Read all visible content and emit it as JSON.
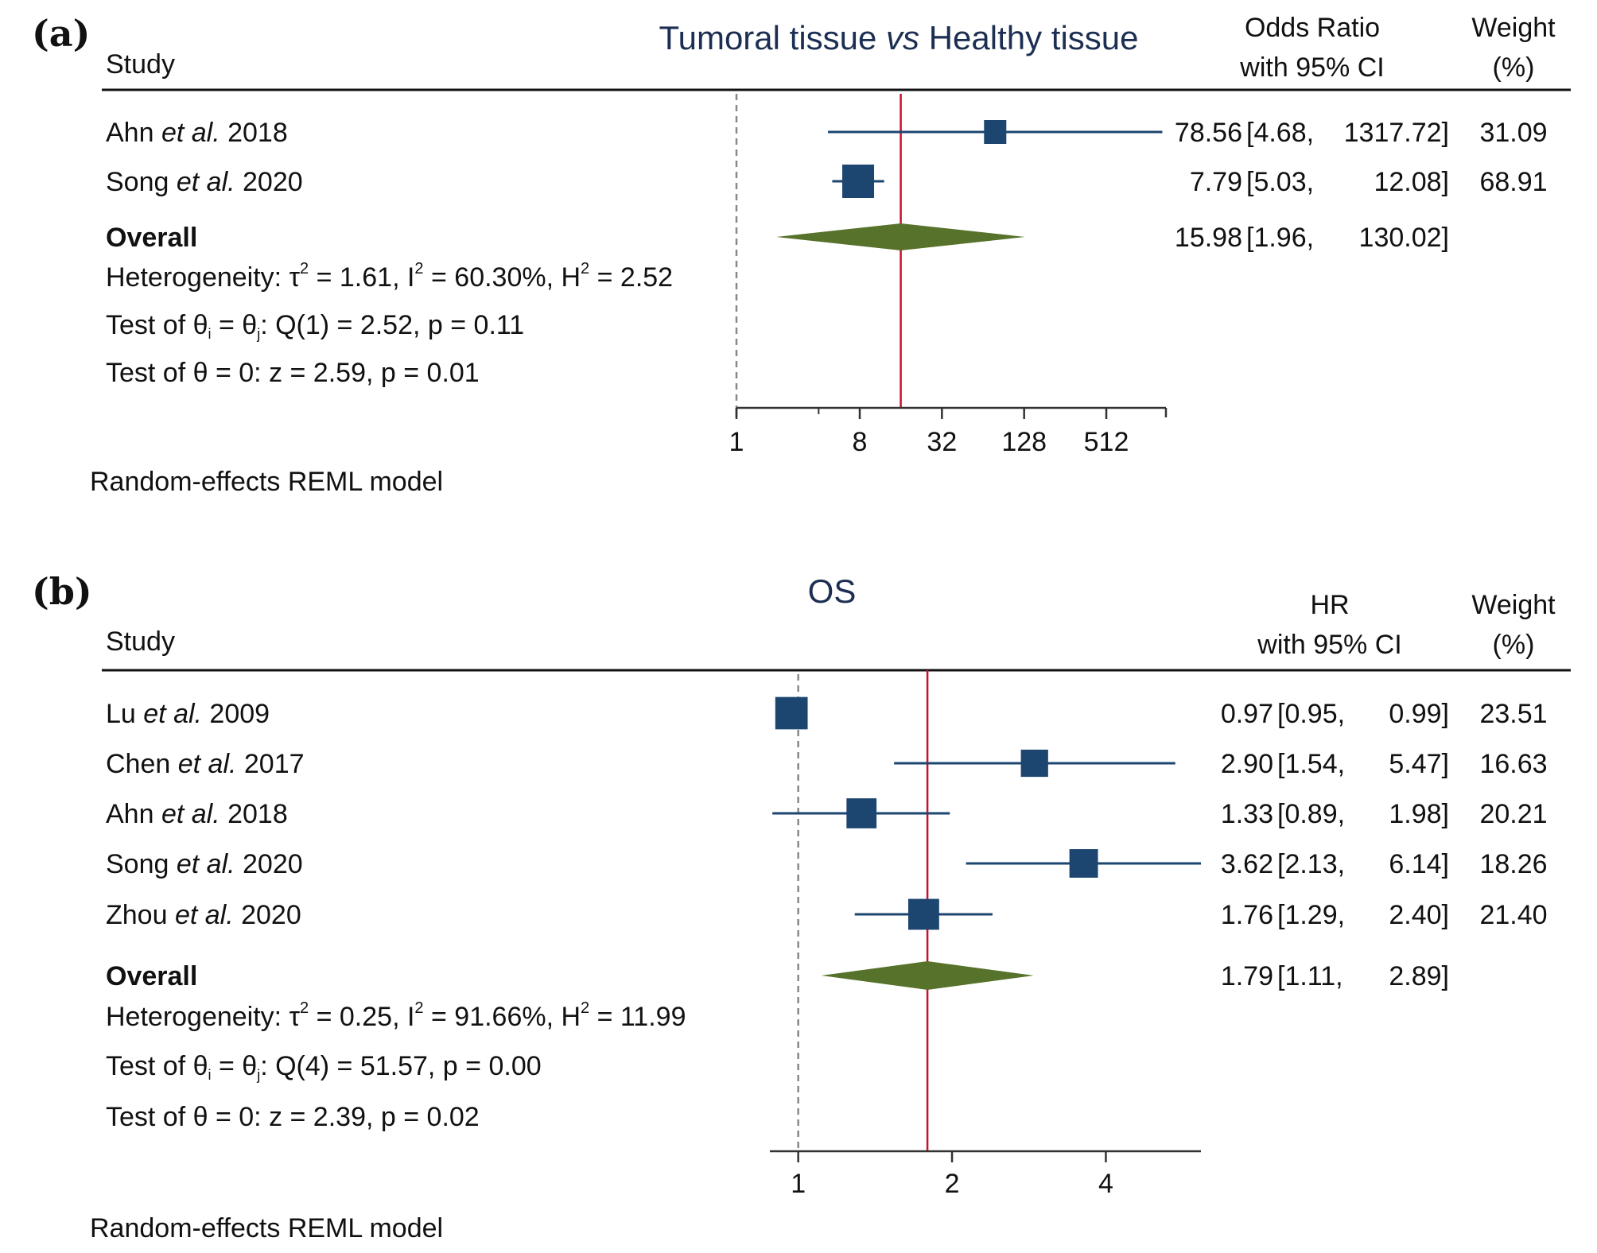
{
  "chart_data": [
    {
      "type": "forest",
      "panel": "(a)",
      "title_parts": [
        "Tumoral tissue ",
        "vs",
        " Healthy tissue"
      ],
      "study_header": "Study",
      "effect_header": [
        "Odds Ratio",
        "with 95% CI"
      ],
      "weight_header": [
        "Weight",
        "(%)"
      ],
      "scale": "log2",
      "xlim": [
        1,
        1400
      ],
      "ticks": [
        1,
        8,
        32,
        128,
        512
      ],
      "tick_labels": [
        "1",
        "8",
        "32",
        "128",
        "512"
      ],
      "minor_ticks": [
        4
      ],
      "null_value": 1,
      "studies": [
        {
          "author": "Ahn",
          "etal": "et al.",
          "year": "2018",
          "estimate": 78.56,
          "lower": 4.68,
          "upper": 1317.72,
          "est_text": "78.56",
          "lo_text": "[4.68,",
          "hi_text": "1317.72]",
          "weight": "31.09"
        },
        {
          "author": "Song",
          "etal": "et al.",
          "year": "2020",
          "estimate": 7.79,
          "lower": 5.03,
          "upper": 12.08,
          "est_text": "7.79",
          "lo_text": "[5.03,",
          "hi_text": "12.08]",
          "weight": "68.91"
        }
      ],
      "overall": {
        "label": "Overall",
        "estimate": 15.98,
        "lower": 1.96,
        "upper": 130.02,
        "est_text": "15.98",
        "lo_text": "[1.96,",
        "hi_text": "130.02]"
      },
      "heterogeneity": {
        "tau2": "1.61",
        "I2": "60.30%",
        "H2": "2.52"
      },
      "test_homogeneity": {
        "df": "1",
        "Q": "2.52",
        "p": "0.11"
      },
      "test_effect": {
        "z": "2.59",
        "p": "0.01"
      },
      "model_note": "Random-effects REML model"
    },
    {
      "type": "forest",
      "panel": "(b)",
      "title_parts": [
        "OS"
      ],
      "study_header": "Study",
      "effect_header": [
        "HR",
        "with 95% CI"
      ],
      "weight_header": [
        "Weight",
        "(%)"
      ],
      "scale": "log2",
      "xlim": [
        0.88,
        6.14
      ],
      "ticks": [
        1,
        2,
        4
      ],
      "tick_labels": [
        "1",
        "2",
        "4"
      ],
      "minor_ticks": [],
      "null_value": 1,
      "studies": [
        {
          "author": "Lu",
          "etal": "et al.",
          "year": "2009",
          "estimate": 0.97,
          "lower": 0.95,
          "upper": 0.99,
          "est_text": "0.97",
          "lo_text": "[0.95,",
          "hi_text": "0.99]",
          "weight": "23.51"
        },
        {
          "author": "Chen",
          "etal": "et al.",
          "year": "2017",
          "estimate": 2.9,
          "lower": 1.54,
          "upper": 5.47,
          "est_text": "2.90",
          "lo_text": "[1.54,",
          "hi_text": "5.47]",
          "weight": "16.63"
        },
        {
          "author": "Ahn",
          "etal": "et al.",
          "year": "2018",
          "estimate": 1.33,
          "lower": 0.89,
          "upper": 1.98,
          "est_text": "1.33",
          "lo_text": "[0.89,",
          "hi_text": "1.98]",
          "weight": "20.21"
        },
        {
          "author": "Song",
          "etal": "et al.",
          "year": "2020",
          "estimate": 3.62,
          "lower": 2.13,
          "upper": 6.14,
          "est_text": "3.62",
          "lo_text": "[2.13,",
          "hi_text": "6.14]",
          "weight": "18.26"
        },
        {
          "author": "Zhou",
          "etal": "et al.",
          "year": "2020",
          "estimate": 1.76,
          "lower": 1.29,
          "upper": 2.4,
          "est_text": "1.76",
          "lo_text": "[1.29,",
          "hi_text": "2.40]",
          "weight": "21.40"
        }
      ],
      "overall": {
        "label": "Overall",
        "estimate": 1.79,
        "lower": 1.11,
        "upper": 2.89,
        "est_text": "1.79",
        "lo_text": "[1.11,",
        "hi_text": "2.89]"
      },
      "heterogeneity": {
        "tau2": "0.25",
        "I2": "91.66%",
        "H2": "11.99"
      },
      "test_homogeneity": {
        "df": "4",
        "Q": "51.57",
        "p": "0.00"
      },
      "test_effect": {
        "z": "2.39",
        "p": "0.02"
      },
      "model_note": "Random-effects REML model"
    }
  ],
  "colors": {
    "marker": "#1c4670",
    "diamond": "#56722b",
    "overall_line": "#c8102e",
    "null_line": "#888888",
    "title": "#1c2f52",
    "text": "#111111"
  }
}
